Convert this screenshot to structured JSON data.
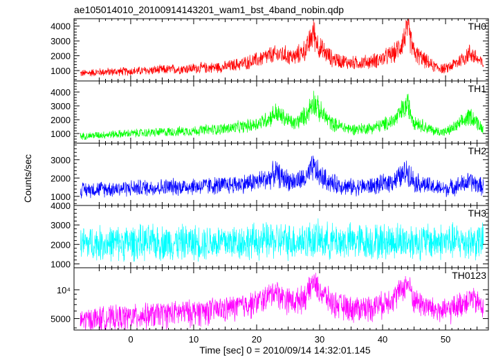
{
  "chart_data": {
    "type": "line",
    "title": "ae105014010_20100914143201_wam1_bst_4band_nobin.qdp",
    "xlabel": "Time [sec] 0 = 2010/09/14 14:32:01.145",
    "ylabel": "Counts/sec",
    "xlim": [
      -9,
      56.8
    ],
    "xticks": [
      0,
      10,
      20,
      30,
      40,
      50
    ],
    "xtick_labels": [
      "0",
      "10",
      "20",
      "30",
      "40",
      "50"
    ],
    "grid": false,
    "panels": [
      {
        "name": "TH0",
        "color": "#ff0000",
        "ylim": [
          300,
          4500
        ],
        "yticks": [
          1000,
          2000,
          3000,
          4000
        ],
        "ytick_labels": [
          "1000",
          "2000",
          "3000",
          "4000"
        ],
        "log": false,
        "series": {
          "x": [
            -8,
            -5,
            0,
            5,
            10,
            15,
            18,
            20,
            22,
            24,
            26,
            28,
            29,
            30,
            32,
            35,
            38,
            40,
            42,
            43,
            44,
            45,
            48,
            50,
            52,
            54,
            56
          ],
          "y": [
            800,
            900,
            950,
            1050,
            1150,
            1250,
            1500,
            1700,
            2000,
            2100,
            1900,
            2500,
            3600,
            2500,
            1800,
            1500,
            1600,
            1800,
            2200,
            2800,
            3800,
            2200,
            1300,
            1100,
            1600,
            2200,
            1400
          ]
        }
      },
      {
        "name": "TH1",
        "color": "#00ff00",
        "ylim": [
          300,
          4800
        ],
        "yticks": [
          1000,
          2000,
          3000,
          4000
        ],
        "ytick_labels": [
          "1000",
          "2000",
          "3000",
          "4000"
        ],
        "log": false,
        "series": {
          "x": [
            -8,
            -5,
            0,
            5,
            10,
            15,
            18,
            20,
            22,
            23,
            24,
            26,
            28,
            29,
            30,
            32,
            35,
            38,
            40,
            42,
            43,
            44,
            45,
            48,
            50,
            52,
            54,
            56
          ],
          "y": [
            800,
            900,
            1000,
            1100,
            1200,
            1350,
            1500,
            1700,
            2100,
            2500,
            2200,
            1700,
            2400,
            3400,
            2600,
            1700,
            1300,
            1400,
            1600,
            2000,
            2600,
            3100,
            1900,
            1200,
            1100,
            1600,
            2300,
            1300
          ]
        }
      },
      {
        "name": "TH2",
        "color": "#0000ff",
        "ylim": [
          500,
          3900
        ],
        "yticks": [
          1000,
          2000,
          3000
        ],
        "ytick_labels": [
          "1000",
          "2000",
          "3000"
        ],
        "log": false,
        "series": {
          "x": [
            -8,
            -5,
            0,
            5,
            10,
            15,
            18,
            20,
            22,
            23,
            24,
            26,
            28,
            29,
            30,
            32,
            35,
            38,
            40,
            42,
            43,
            44,
            45,
            48,
            50,
            52,
            54,
            56
          ],
          "y": [
            1350,
            1400,
            1450,
            1500,
            1550,
            1600,
            1700,
            1800,
            2000,
            2300,
            2000,
            1800,
            2000,
            2600,
            2100,
            1700,
            1500,
            1550,
            1650,
            1900,
            2100,
            2400,
            1800,
            1500,
            1400,
            1600,
            1800,
            1500
          ]
        }
      },
      {
        "name": "TH3",
        "color": "#00ffff",
        "ylim": [
          800,
          4000
        ],
        "yticks": [
          1000,
          2000,
          3000,
          4000
        ],
        "ytick_labels": [
          "1000",
          "2000",
          "3000",
          "4000"
        ],
        "log": false,
        "series": {
          "x": [
            -8,
            0,
            10,
            20,
            23,
            26,
            29,
            32,
            40,
            43,
            45,
            50,
            56
          ],
          "y": [
            2050,
            2080,
            2100,
            2150,
            2200,
            2150,
            2250,
            2150,
            2150,
            2200,
            2150,
            2150,
            2150
          ]
        }
      },
      {
        "name": "TH0123",
        "color": "#ff00ff",
        "ylim": [
          3800,
          17000
        ],
        "yticks": [
          5000,
          10000
        ],
        "ytick_labels": [
          "5000",
          "10⁴"
        ],
        "minor_yticks": [
          4000,
          6000,
          7000,
          8000,
          9000
        ],
        "log": true,
        "series": {
          "x": [
            -8,
            -5,
            0,
            5,
            10,
            15,
            18,
            20,
            22,
            23,
            24,
            26,
            28,
            29,
            30,
            32,
            35,
            38,
            40,
            42,
            43,
            44,
            45,
            48,
            50,
            52,
            54,
            56
          ],
          "y": [
            4800,
            5100,
            5300,
            5700,
            6000,
            6400,
            7000,
            7500,
            8800,
            10000,
            8600,
            7600,
            9000,
            12500,
            9800,
            7400,
            6500,
            6700,
            7300,
            8700,
            10300,
            11800,
            7900,
            6300,
            6000,
            7000,
            8300,
            6600
          ]
        }
      }
    ]
  }
}
